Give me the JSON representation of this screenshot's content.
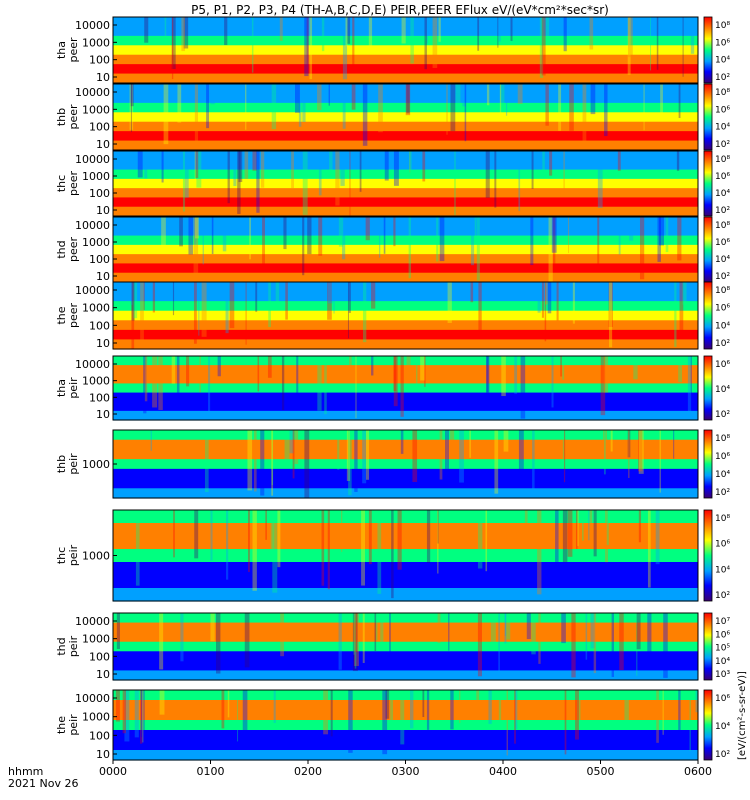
{
  "chart_data": {
    "type": "heatmap",
    "title": "P5, P1, P2, P3, P4 (TH-A,B,C,D,E) PEIR,PEER EFlux eV/(eV*cm²*sec*sr)",
    "x_row_label": "hhmm",
    "date_label": "2021 Nov 26",
    "x_ticks": [
      "0000",
      "0100",
      "0200",
      "0300",
      "0400",
      "0500",
      "0600"
    ],
    "xlim": [
      "00:00",
      "06:00"
    ],
    "y_scale": "log",
    "colorbar_title": "[eV/(cm²-s-sr-eV)]",
    "colormap": [
      "#3a0070",
      "#0000ff",
      "#00a0ff",
      "#00ff80",
      "#ffff00",
      "#ff8000",
      "#ff0000"
    ],
    "panels": [
      {
        "line1": "tha",
        "line2": "peer",
        "yticks": [
          "10000",
          "1000",
          "100",
          "10"
        ],
        "cbar_ticks": [
          "10⁸",
          "10⁶",
          "10⁴",
          "10²"
        ]
      },
      {
        "line1": "thb",
        "line2": "peer",
        "yticks": [
          "10000",
          "1000",
          "100",
          "10"
        ],
        "cbar_ticks": [
          "10⁸",
          "10⁶",
          "10⁴",
          "10²"
        ]
      },
      {
        "line1": "thc",
        "line2": "peer",
        "yticks": [
          "10000",
          "1000",
          "100",
          "10"
        ],
        "cbar_ticks": [
          "10⁸",
          "10⁶",
          "10⁴",
          "10²"
        ]
      },
      {
        "line1": "thd",
        "line2": "peer",
        "yticks": [
          "10000",
          "1000",
          "100",
          "10"
        ],
        "cbar_ticks": [
          "10⁸",
          "10⁶",
          "10⁴",
          "10²"
        ]
      },
      {
        "line1": "the",
        "line2": "peer",
        "yticks": [
          "10000",
          "1000",
          "100",
          "10"
        ],
        "cbar_ticks": [
          "10⁸",
          "10⁶",
          "10⁴",
          "10²"
        ]
      },
      {
        "line1": "tha",
        "line2": "peir",
        "yticks": [
          "10000",
          "1000",
          "100",
          "10"
        ],
        "cbar_ticks": [
          "10⁶",
          "10⁴",
          "10²"
        ]
      },
      {
        "line1": "thb",
        "line2": "peir",
        "yticks": [
          "1000"
        ],
        "cbar_ticks": [
          "10⁸",
          "10⁶",
          "10⁴",
          "10²"
        ]
      },
      {
        "line1": "thc",
        "line2": "peir",
        "yticks": [
          "1000"
        ],
        "cbar_ticks": [
          "10⁸",
          "10⁶",
          "10⁴",
          "10²"
        ]
      },
      {
        "line1": "thd",
        "line2": "peir",
        "yticks": [
          "10000",
          "1000",
          "100",
          "10"
        ],
        "cbar_ticks": [
          "10⁷",
          "10⁶",
          "10⁵",
          "10⁴",
          "10³"
        ]
      },
      {
        "line1": "the",
        "line2": "peir",
        "yticks": [
          "10000",
          "1000",
          "100",
          "10"
        ],
        "cbar_ticks": [
          "10⁶",
          "10⁴",
          "10²"
        ]
      }
    ]
  }
}
